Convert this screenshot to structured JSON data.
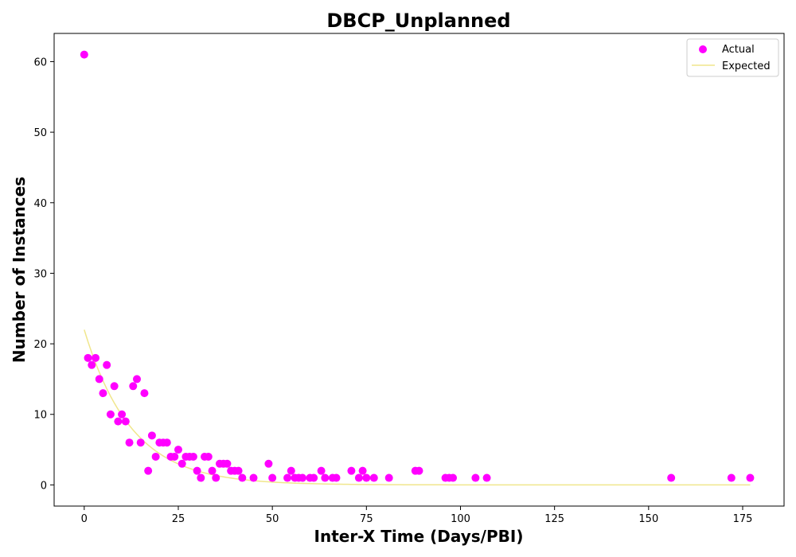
{
  "chart_data": {
    "type": "scatter",
    "title": "DBCP_Unplanned",
    "xlabel": "Inter-X Time (Days/PBI)",
    "ylabel": "Number of Instances",
    "xlim": [
      -8,
      186
    ],
    "ylim": [
      -3,
      64
    ],
    "xticks": [
      0,
      25,
      50,
      75,
      100,
      125,
      150,
      175
    ],
    "yticks": [
      0,
      10,
      20,
      30,
      40,
      50,
      60
    ],
    "grid": false,
    "legend_position": "top-right",
    "colors": {
      "actual": "#ff00ff",
      "expected": "#f0e68c",
      "axes": "#000000",
      "background": "#ffffff"
    },
    "series": [
      {
        "name": "Actual",
        "kind": "scatter",
        "points": [
          [
            0,
            61
          ],
          [
            1,
            18
          ],
          [
            2,
            17
          ],
          [
            3,
            18
          ],
          [
            4,
            15
          ],
          [
            5,
            13
          ],
          [
            6,
            17
          ],
          [
            7,
            10
          ],
          [
            8,
            14
          ],
          [
            9,
            9
          ],
          [
            10,
            10
          ],
          [
            11,
            9
          ],
          [
            12,
            6
          ],
          [
            13,
            14
          ],
          [
            14,
            15
          ],
          [
            15,
            6
          ],
          [
            16,
            13
          ],
          [
            17,
            2
          ],
          [
            18,
            7
          ],
          [
            19,
            4
          ],
          [
            20,
            6
          ],
          [
            21,
            6
          ],
          [
            22,
            6
          ],
          [
            23,
            4
          ],
          [
            24,
            4
          ],
          [
            25,
            5
          ],
          [
            26,
            3
          ],
          [
            27,
            4
          ],
          [
            28,
            4
          ],
          [
            29,
            4
          ],
          [
            30,
            2
          ],
          [
            31,
            1
          ],
          [
            32,
            4
          ],
          [
            33,
            4
          ],
          [
            34,
            2
          ],
          [
            35,
            1
          ],
          [
            36,
            3
          ],
          [
            37,
            3
          ],
          [
            38,
            3
          ],
          [
            39,
            2
          ],
          [
            40,
            2
          ],
          [
            41,
            2
          ],
          [
            42,
            1
          ],
          [
            45,
            1
          ],
          [
            49,
            3
          ],
          [
            50,
            1
          ],
          [
            54,
            1
          ],
          [
            55,
            2
          ],
          [
            56,
            1
          ],
          [
            57,
            1
          ],
          [
            58,
            1
          ],
          [
            60,
            1
          ],
          [
            61,
            1
          ],
          [
            63,
            2
          ],
          [
            64,
            1
          ],
          [
            66,
            1
          ],
          [
            67,
            1
          ],
          [
            71,
            2
          ],
          [
            73,
            1
          ],
          [
            74,
            2
          ],
          [
            75,
            1
          ],
          [
            77,
            1
          ],
          [
            81,
            1
          ],
          [
            88,
            2
          ],
          [
            89,
            2
          ],
          [
            96,
            1
          ],
          [
            97,
            1
          ],
          [
            98,
            1
          ],
          [
            104,
            1
          ],
          [
            107,
            1
          ],
          [
            156,
            1
          ],
          [
            172,
            1
          ],
          [
            177,
            1
          ]
        ]
      },
      {
        "name": "Expected",
        "kind": "line",
        "x_start": 0,
        "x_end": 177,
        "x_step": 1,
        "y0": 22,
        "rate": 0.08
      }
    ]
  }
}
